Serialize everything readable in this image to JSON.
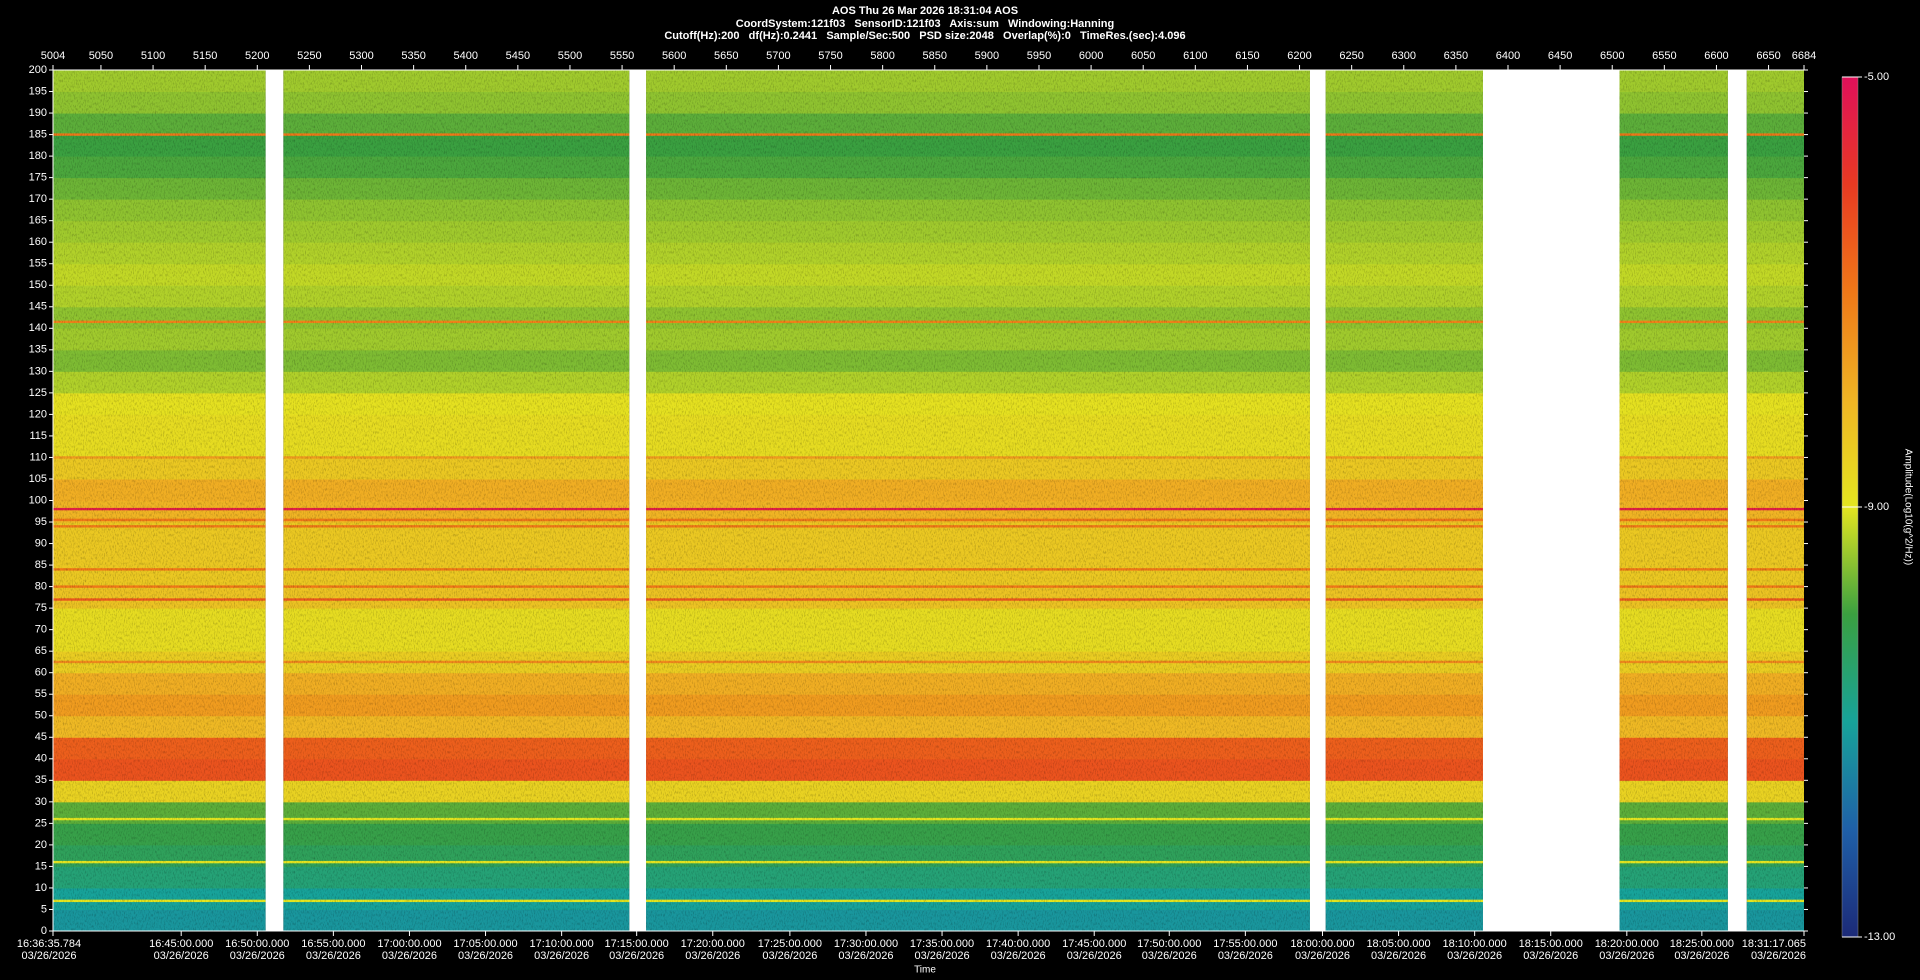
{
  "chart_data": {
    "type": "spectrogram",
    "title": "AOS  Thu 26 Mar 2026 18:31:04  AOS",
    "subtitle": "CoordSystem:121f03   SensorID:121f03   Axis:sum   Windowing:Hanning",
    "subtitle2": "Cutoff(Hz):200   df(Hz):0.2441   Sample/Sec:500   PSD size:2048   Overlap(%):0   TimeRes.(sec):4.096",
    "x_label": "Time",
    "colorbar_label": "Amplitude(Log10(g^2/Hz))",
    "xlim": [
      5004,
      6684
    ],
    "xticks": [
      5004,
      5050,
      5100,
      5150,
      5200,
      5250,
      5300,
      5350,
      5400,
      5450,
      5500,
      5550,
      5600,
      5650,
      5700,
      5750,
      5800,
      5850,
      5900,
      5950,
      6000,
      6050,
      6100,
      6150,
      6200,
      6250,
      6300,
      6350,
      6400,
      6450,
      6500,
      6550,
      6600,
      6650,
      6684
    ],
    "time_date": "03/26/2026",
    "time_ticks": [
      {
        "value": 5004,
        "label": "16:36:35.784"
      },
      {
        "value": 5127,
        "label": "16:45:00.000"
      },
      {
        "value": 5200,
        "label": "16:50:00.000"
      },
      {
        "value": 5273,
        "label": "16:55:00.000"
      },
      {
        "value": 5346,
        "label": "17:00:00.000"
      },
      {
        "value": 5419,
        "label": "17:05:00.000"
      },
      {
        "value": 5492,
        "label": "17:10:00.000"
      },
      {
        "value": 5564,
        "label": "17:15:00.000"
      },
      {
        "value": 5637,
        "label": "17:20:00.000"
      },
      {
        "value": 5711,
        "label": "17:25:00.000"
      },
      {
        "value": 5784,
        "label": "17:30:00.000"
      },
      {
        "value": 5857,
        "label": "17:35:00.000"
      },
      {
        "value": 5930,
        "label": "17:40:00.000"
      },
      {
        "value": 6003,
        "label": "17:45:00.000"
      },
      {
        "value": 6075,
        "label": "17:50:00.000"
      },
      {
        "value": 6148,
        "label": "17:55:00.000"
      },
      {
        "value": 6222,
        "label": "18:00:00.000"
      },
      {
        "value": 6295,
        "label": "18:05:00.000"
      },
      {
        "value": 6368,
        "label": "18:10:00.000"
      },
      {
        "value": 6441,
        "label": "18:15:00.000"
      },
      {
        "value": 6514,
        "label": "18:20:00.000"
      },
      {
        "value": 6586,
        "label": "18:25:00.000"
      },
      {
        "value": 6684,
        "label": "18:31:17.065"
      }
    ],
    "ylim": [
      0,
      200
    ],
    "yticks": [
      0,
      5,
      10,
      15,
      20,
      25,
      30,
      35,
      40,
      45,
      50,
      55,
      60,
      65,
      70,
      75,
      80,
      85,
      90,
      95,
      100,
      105,
      110,
      115,
      120,
      125,
      130,
      135,
      140,
      145,
      150,
      155,
      160,
      165,
      170,
      175,
      180,
      185,
      190,
      195,
      200
    ],
    "gaps": [
      [
        5208,
        5225
      ],
      [
        5557,
        5573
      ],
      [
        6210,
        6225
      ],
      [
        6376,
        6507
      ],
      [
        6611,
        6629
      ]
    ],
    "bands": {
      "edges": [
        0,
        5,
        10,
        15,
        20,
        25,
        30,
        35,
        40,
        45,
        50,
        55,
        60,
        65,
        70,
        75,
        80,
        85,
        90,
        95,
        100,
        105,
        110,
        115,
        120,
        125,
        130,
        135,
        140,
        145,
        150,
        155,
        160,
        165,
        170,
        175,
        180,
        185,
        190,
        195,
        200
      ],
      "values": [
        -11.2,
        -11.0,
        -10.6,
        -10.3,
        -10.1,
        -9.8,
        -8.6,
        -6.4,
        -6.6,
        -8.1,
        -7.6,
        -7.9,
        -8.5,
        -8.8,
        -8.8,
        -8.3,
        -8.4,
        -8.4,
        -8.4,
        -8.0,
        -7.9,
        -8.4,
        -8.8,
        -8.8,
        -8.9,
        -9.3,
        -9.6,
        -9.4,
        -9.5,
        -9.3,
        -9.2,
        -9.3,
        -9.4,
        -9.5,
        -9.7,
        -9.9,
        -10.0,
        -9.8,
        -9.5,
        -9.4
      ]
    },
    "tones": {
      "freqs": [
        185,
        141.5,
        110,
        98,
        95.5,
        94,
        84,
        80,
        77,
        62.5,
        26,
        16,
        7
      ],
      "values": [
        -7.0,
        -7.2,
        -7.6,
        -5.4,
        -7.0,
        -7.0,
        -7.0,
        -7.0,
        -6.5,
        -7.3,
        -9.0,
        -9.0,
        -9.0
      ]
    },
    "clim": [
      -13,
      -5
    ],
    "cticks": [
      {
        "value": -13,
        "label": "-13.00"
      },
      {
        "value": -9,
        "label": "-9.00"
      },
      {
        "value": -5,
        "label": "-5.00"
      }
    ],
    "colorscale": [
      "#1c2a78",
      "#1f60a8",
      "#17a39a",
      "#3aa040",
      "#e4e620",
      "#f0b424",
      "#f07818",
      "#e83a22",
      "#e0105a"
    ]
  }
}
